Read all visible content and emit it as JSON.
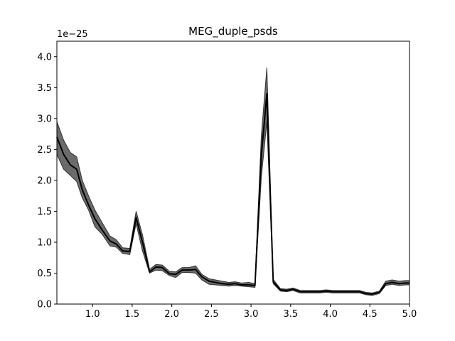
{
  "chart_data": {
    "type": "line",
    "title": "MEG_duple_psds",
    "xlabel": "",
    "ylabel": "",
    "y_offset_label": "1e−25",
    "xlim": [
      0.55,
      5.0
    ],
    "ylim": [
      0.0,
      4.25
    ],
    "x_ticks": [
      1.0,
      1.5,
      2.0,
      2.5,
      3.0,
      3.5,
      4.0,
      4.5,
      5.0
    ],
    "x_tick_labels": [
      "1.0",
      "1.5",
      "2.0",
      "2.5",
      "3.0",
      "3.5",
      "4.0",
      "4.5",
      "5.0"
    ],
    "y_ticks": [
      0.0,
      0.5,
      1.0,
      1.5,
      2.0,
      2.5,
      3.0,
      3.5,
      4.0
    ],
    "y_tick_labels": [
      "0.0",
      "0.5",
      "1.0",
      "1.5",
      "2.0",
      "2.5",
      "3.0",
      "3.5",
      "4.0"
    ],
    "grid": false,
    "colors": {
      "mean_line": "#000000",
      "band_fill": "#6b6b6b",
      "band_edge": "#333333"
    },
    "series": [
      {
        "x": [
          0.55,
          0.635,
          0.72,
          0.8,
          0.87,
          0.95,
          1.03,
          1.12,
          1.22,
          1.3,
          1.38,
          1.47,
          1.55,
          1.63,
          1.72,
          1.8,
          1.88,
          1.97,
          2.05,
          2.13,
          2.22,
          2.3,
          2.38,
          2.47,
          2.55,
          2.63,
          2.72,
          2.8,
          2.88,
          2.97,
          3.05,
          3.13,
          3.2,
          3.28,
          3.37,
          3.45,
          3.53,
          3.62,
          3.7,
          3.78,
          3.87,
          3.95,
          4.03,
          4.12,
          4.2,
          4.28,
          4.37,
          4.45,
          4.53,
          4.62,
          4.7,
          4.78,
          4.87,
          4.95,
          5.0
        ],
        "mean": [
          2.7,
          2.42,
          2.25,
          2.18,
          1.85,
          1.6,
          1.38,
          1.2,
          1.02,
          0.97,
          0.86,
          0.85,
          1.4,
          1.0,
          0.52,
          0.6,
          0.59,
          0.49,
          0.48,
          0.55,
          0.55,
          0.56,
          0.44,
          0.37,
          0.35,
          0.33,
          0.32,
          0.33,
          0.31,
          0.31,
          0.3,
          2.4,
          3.4,
          0.36,
          0.23,
          0.22,
          0.24,
          0.2,
          0.2,
          0.2,
          0.2,
          0.21,
          0.2,
          0.2,
          0.2,
          0.2,
          0.2,
          0.17,
          0.16,
          0.19,
          0.33,
          0.35,
          0.33,
          0.34,
          0.34
        ],
        "lower": [
          2.42,
          2.18,
          2.08,
          1.98,
          1.72,
          1.52,
          1.25,
          1.13,
          0.94,
          0.92,
          0.82,
          0.8,
          1.3,
          0.86,
          0.5,
          0.55,
          0.54,
          0.46,
          0.43,
          0.51,
          0.51,
          0.5,
          0.39,
          0.32,
          0.31,
          0.3,
          0.29,
          0.3,
          0.29,
          0.28,
          0.27,
          2.05,
          2.95,
          0.33,
          0.21,
          0.2,
          0.22,
          0.18,
          0.18,
          0.18,
          0.18,
          0.19,
          0.18,
          0.18,
          0.18,
          0.18,
          0.18,
          0.15,
          0.14,
          0.17,
          0.3,
          0.32,
          0.3,
          0.31,
          0.31
        ],
        "upper": [
          2.95,
          2.65,
          2.45,
          2.38,
          2.0,
          1.75,
          1.52,
          1.32,
          1.1,
          1.04,
          0.91,
          0.9,
          1.5,
          1.12,
          0.56,
          0.64,
          0.63,
          0.53,
          0.52,
          0.59,
          0.59,
          0.62,
          0.48,
          0.41,
          0.39,
          0.37,
          0.35,
          0.36,
          0.34,
          0.35,
          0.33,
          2.72,
          3.82,
          0.4,
          0.25,
          0.24,
          0.26,
          0.22,
          0.22,
          0.22,
          0.22,
          0.23,
          0.22,
          0.22,
          0.22,
          0.22,
          0.22,
          0.19,
          0.18,
          0.21,
          0.37,
          0.39,
          0.37,
          0.38,
          0.38
        ]
      }
    ]
  }
}
